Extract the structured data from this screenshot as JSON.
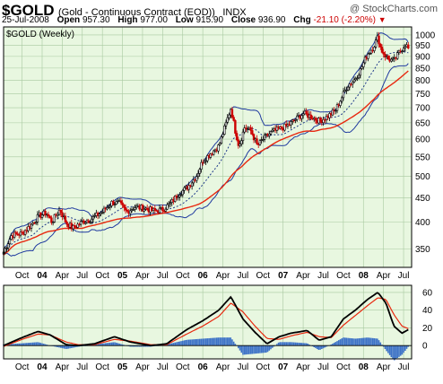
{
  "header": {
    "symbol": "$GOLD",
    "description": "(Gold - Continuous Contract (EOD))",
    "exchange": "INDX",
    "date": "25-Jul-2008",
    "open_label": "Open",
    "open_value": "957.30",
    "high_label": "High",
    "high_value": "977.00",
    "low_label": "Low",
    "low_value": "915.90",
    "close_label": "Close",
    "close_value": "936.90",
    "chg_label": "Chg",
    "chg_value": "-21.10 (-2.20%)",
    "chg_marker": "▼",
    "watermark": "@ StockCharts.com",
    "panel_label": "$GOLD (Weekly)"
  },
  "colors": {
    "panel_bg": "#e8f7e0",
    "grid": "#a8c9a0",
    "up": "#000000",
    "down": "#cc0000",
    "sma_long": "#e8280f",
    "sma_mid": "#1f3a8a",
    "bands": "#1f3a9f",
    "macd_line": "#000000",
    "signal_line": "#e8280f",
    "histogram": "#3d72c7"
  },
  "chart_data": [
    {
      "type": "candlestick",
      "title": "$GOLD (Weekly)",
      "y_scale": "log",
      "ylim": [
        320,
        1040
      ],
      "y_ticks": [
        1000,
        950,
        900,
        850,
        800,
        750,
        700,
        650,
        600,
        550,
        500,
        450,
        400,
        350
      ],
      "x_ticks": [
        "Oct",
        "04",
        "Apr",
        "Jul",
        "Oct",
        "05",
        "Apr",
        "Jul",
        "Oct",
        "06",
        "Apr",
        "Jul",
        "Oct",
        "07",
        "Apr",
        "Jul",
        "Oct",
        "08",
        "Apr",
        "Jul"
      ],
      "x_tick_year": [
        false,
        true,
        false,
        false,
        false,
        true,
        false,
        false,
        false,
        true,
        false,
        false,
        false,
        true,
        false,
        false,
        false,
        true,
        false,
        false
      ],
      "x_tick_months": [
        2003.75,
        2004.0,
        2004.25,
        2004.5,
        2004.75,
        2005.0,
        2005.25,
        2005.5,
        2005.75,
        2006.0,
        2006.25,
        2006.5,
        2006.75,
        2007.0,
        2007.25,
        2007.5,
        2007.75,
        2008.0,
        2008.25,
        2008.5
      ],
      "x_range": [
        2003.52,
        2008.6
      ],
      "anchors": [
        [
          2003.52,
          345
        ],
        [
          2003.62,
          375
        ],
        [
          2003.75,
          378
        ],
        [
          2003.87,
          395
        ],
        [
          2003.96,
          412
        ],
        [
          2004.05,
          418
        ],
        [
          2004.12,
          400
        ],
        [
          2004.22,
          425
        ],
        [
          2004.3,
          398
        ],
        [
          2004.38,
          388
        ],
        [
          2004.5,
          400
        ],
        [
          2004.6,
          405
        ],
        [
          2004.75,
          420
        ],
        [
          2004.87,
          440
        ],
        [
          2004.96,
          438
        ],
        [
          2005.05,
          420
        ],
        [
          2005.15,
          430
        ],
        [
          2005.25,
          428
        ],
        [
          2005.4,
          422
        ],
        [
          2005.5,
          425
        ],
        [
          2005.6,
          438
        ],
        [
          2005.7,
          460
        ],
        [
          2005.8,
          472
        ],
        [
          2005.92,
          500
        ],
        [
          2006.0,
          540
        ],
        [
          2006.1,
          560
        ],
        [
          2006.2,
          580
        ],
        [
          2006.28,
          640
        ],
        [
          2006.35,
          700
        ],
        [
          2006.4,
          630
        ],
        [
          2006.45,
          580
        ],
        [
          2006.52,
          635
        ],
        [
          2006.6,
          625
        ],
        [
          2006.68,
          580
        ],
        [
          2006.75,
          600
        ],
        [
          2006.85,
          620
        ],
        [
          2006.95,
          630
        ],
        [
          2007.05,
          640
        ],
        [
          2007.15,
          660
        ],
        [
          2007.25,
          680
        ],
        [
          2007.35,
          670
        ],
        [
          2007.45,
          655
        ],
        [
          2007.55,
          670
        ],
        [
          2007.65,
          690
        ],
        [
          2007.72,
          730
        ],
        [
          2007.8,
          780
        ],
        [
          2007.88,
          800
        ],
        [
          2007.96,
          840
        ],
        [
          2008.05,
          910
        ],
        [
          2008.12,
          940
        ],
        [
          2008.18,
          990
        ],
        [
          2008.22,
          930
        ],
        [
          2008.3,
          890
        ],
        [
          2008.38,
          880
        ],
        [
          2008.45,
          920
        ],
        [
          2008.52,
          955
        ],
        [
          2008.56,
          937
        ]
      ]
    },
    {
      "type": "line",
      "title": "",
      "ylim": [
        -15,
        68
      ],
      "y_ticks": [
        60,
        40,
        20,
        0
      ],
      "series": [
        {
          "name": "",
          "color": "#000000",
          "points": [
            [
              2003.52,
              0
            ],
            [
              2003.75,
              9
            ],
            [
              2003.95,
              16
            ],
            [
              2004.1,
              12
            ],
            [
              2004.3,
              1
            ],
            [
              2004.45,
              0
            ],
            [
              2004.65,
              2
            ],
            [
              2004.9,
              10
            ],
            [
              2005.1,
              4
            ],
            [
              2005.35,
              0
            ],
            [
              2005.55,
              2
            ],
            [
              2005.8,
              18
            ],
            [
              2006.0,
              28
            ],
            [
              2006.2,
              40
            ],
            [
              2006.35,
              55
            ],
            [
              2006.5,
              30
            ],
            [
              2006.65,
              15
            ],
            [
              2006.8,
              2
            ],
            [
              2006.95,
              10
            ],
            [
              2007.1,
              14
            ],
            [
              2007.3,
              17
            ],
            [
              2007.45,
              6
            ],
            [
              2007.6,
              10
            ],
            [
              2007.75,
              30
            ],
            [
              2007.9,
              40
            ],
            [
              2008.05,
              52
            ],
            [
              2008.18,
              60
            ],
            [
              2008.28,
              48
            ],
            [
              2008.38,
              22
            ],
            [
              2008.48,
              14
            ],
            [
              2008.56,
              18
            ]
          ]
        },
        {
          "name": "",
          "color": "#e8280f",
          "points": [
            [
              2003.52,
              -1
            ],
            [
              2003.75,
              7
            ],
            [
              2003.95,
              13
            ],
            [
              2004.1,
              12
            ],
            [
              2004.3,
              4
            ],
            [
              2004.45,
              1
            ],
            [
              2004.65,
              1
            ],
            [
              2004.9,
              7
            ],
            [
              2005.1,
              5
            ],
            [
              2005.35,
              1
            ],
            [
              2005.55,
              1
            ],
            [
              2005.8,
              13
            ],
            [
              2006.0,
              22
            ],
            [
              2006.2,
              33
            ],
            [
              2006.35,
              48
            ],
            [
              2006.5,
              38
            ],
            [
              2006.65,
              22
            ],
            [
              2006.8,
              8
            ],
            [
              2006.95,
              7
            ],
            [
              2007.1,
              11
            ],
            [
              2007.3,
              15
            ],
            [
              2007.45,
              10
            ],
            [
              2007.6,
              9
            ],
            [
              2007.75,
              23
            ],
            [
              2007.9,
              34
            ],
            [
              2008.05,
              45
            ],
            [
              2008.18,
              54
            ],
            [
              2008.28,
              52
            ],
            [
              2008.38,
              35
            ],
            [
              2008.48,
              22
            ],
            [
              2008.56,
              19
            ]
          ]
        }
      ]
    }
  ]
}
